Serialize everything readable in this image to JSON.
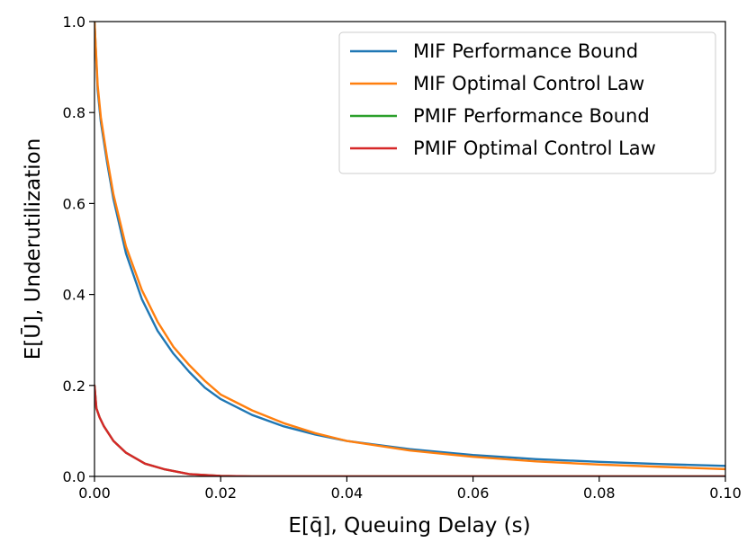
{
  "chart_data": {
    "type": "line",
    "xlabel": "E[q̄], Queuing Delay (s)",
    "ylabel": "E[Ū], Underutilization",
    "xlim": [
      0.0,
      0.1
    ],
    "ylim": [
      0.0,
      1.0
    ],
    "xticks": [
      "0.00",
      "0.02",
      "0.04",
      "0.06",
      "0.08",
      "0.10"
    ],
    "yticks": [
      "0.0",
      "0.2",
      "0.4",
      "0.6",
      "0.8",
      "1.0"
    ],
    "grid": false,
    "legend_position": "top-right",
    "series": [
      {
        "name": "MIF Performance Bound",
        "color": "#1f77b4",
        "x": [
          0.0,
          0.0005,
          0.001,
          0.002,
          0.003,
          0.005,
          0.0075,
          0.01,
          0.0125,
          0.015,
          0.0175,
          0.02,
          0.025,
          0.03,
          0.035,
          0.04,
          0.05,
          0.06,
          0.07,
          0.08,
          0.09,
          0.1
        ],
        "y": [
          1.0,
          0.85,
          0.78,
          0.69,
          0.61,
          0.49,
          0.39,
          0.32,
          0.27,
          0.23,
          0.195,
          0.17,
          0.135,
          0.11,
          0.092,
          0.078,
          0.06,
          0.047,
          0.038,
          0.032,
          0.027,
          0.023
        ]
      },
      {
        "name": "MIF Optimal Control Law",
        "color": "#ff7f0e",
        "x": [
          0.0,
          0.0005,
          0.001,
          0.002,
          0.003,
          0.005,
          0.0075,
          0.01,
          0.0125,
          0.015,
          0.0175,
          0.02,
          0.025,
          0.03,
          0.035,
          0.04,
          0.05,
          0.06,
          0.07,
          0.08,
          0.09,
          0.1
        ],
        "y": [
          1.0,
          0.86,
          0.79,
          0.7,
          0.62,
          0.505,
          0.41,
          0.34,
          0.285,
          0.245,
          0.21,
          0.18,
          0.145,
          0.117,
          0.095,
          0.078,
          0.057,
          0.043,
          0.033,
          0.026,
          0.021,
          0.016
        ]
      },
      {
        "name": "PMIF Performance Bound",
        "color": "#2ca02c",
        "x": [
          0.0,
          0.0003,
          0.0008,
          0.0015,
          0.003,
          0.005,
          0.008,
          0.011,
          0.015,
          0.02,
          0.025,
          0.03,
          0.04,
          0.06,
          0.08,
          0.1
        ],
        "y": [
          0.2,
          0.15,
          0.13,
          0.11,
          0.078,
          0.052,
          0.028,
          0.016,
          0.005,
          0.001,
          0.0,
          0.0,
          0.0,
          0.0,
          0.0,
          0.0
        ]
      },
      {
        "name": "PMIF Optimal Control Law",
        "color": "#d62728",
        "x": [
          0.0,
          0.0003,
          0.0008,
          0.0015,
          0.003,
          0.005,
          0.008,
          0.011,
          0.015,
          0.02,
          0.025,
          0.03,
          0.04,
          0.06,
          0.08,
          0.1
        ],
        "y": [
          0.2,
          0.15,
          0.13,
          0.11,
          0.078,
          0.052,
          0.028,
          0.016,
          0.005,
          0.001,
          0.0,
          0.0,
          0.0,
          0.0,
          0.0,
          0.0
        ]
      }
    ]
  }
}
